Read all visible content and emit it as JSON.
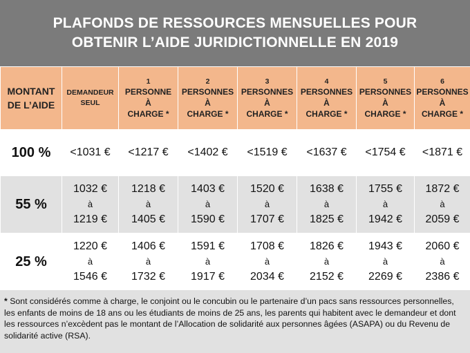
{
  "title": {
    "line1": "PLAFONDS DE RESSOURCES MENSUELLES POUR",
    "line2": "OBTENIR  L’AIDE JURIDICTIONNELLE EN 2019"
  },
  "columns": {
    "montant": [
      "MONTANT",
      "DE L’AIDE"
    ],
    "demandeur": [
      "DEMANDEUR",
      "SEUL"
    ],
    "charges": [
      {
        "num": "1",
        "lines": [
          "PERSONNE",
          "À",
          "CHARGE *"
        ]
      },
      {
        "num": "2",
        "lines": [
          "PERSONNES",
          "À",
          "CHARGE *"
        ]
      },
      {
        "num": "3",
        "lines": [
          "PERSONNES",
          "À",
          "CHARGE *"
        ]
      },
      {
        "num": "4",
        "lines": [
          "PERSONNES",
          "À",
          "CHARGE *"
        ]
      },
      {
        "num": "5",
        "lines": [
          "PERSONNES",
          "À",
          "CHARGE *"
        ]
      },
      {
        "num": "6",
        "lines": [
          "PERSONNES",
          "À",
          "CHARGE *"
        ]
      }
    ]
  },
  "rows": [
    {
      "level": "100 %",
      "cells": [
        [
          "<1031 €"
        ],
        [
          "<1217 €"
        ],
        [
          "<1402 €"
        ],
        [
          "<1519 €"
        ],
        [
          "<1637 €"
        ],
        [
          "<1754 €"
        ],
        [
          "<1871 €"
        ]
      ]
    },
    {
      "level": "55 %",
      "cells": [
        [
          "1032 €",
          "à",
          "1219 €"
        ],
        [
          "1218 €",
          "à",
          "1405 €"
        ],
        [
          "1403 €",
          "à",
          "1590 €"
        ],
        [
          "1520 €",
          "à",
          "1707 €"
        ],
        [
          "1638 €",
          "à",
          "1825 €"
        ],
        [
          "1755 €",
          "à",
          "1942 €"
        ],
        [
          "1872 €",
          "à",
          "2059 €"
        ]
      ]
    },
    {
      "level": "25 %",
      "cells": [
        [
          "1220 €",
          "à",
          "1546 €"
        ],
        [
          "1406 €",
          "à",
          "1732 €"
        ],
        [
          "1591 €",
          "à",
          "1917 €"
        ],
        [
          "1708 €",
          "à",
          "2034 €"
        ],
        [
          "1826 €",
          "à",
          "2152 €"
        ],
        [
          "1943 €",
          "à",
          "2269 €"
        ],
        [
          "2060 €",
          "à",
          "2386 €"
        ]
      ]
    }
  ],
  "note": {
    "star": "*",
    "text": " Sont considérés comme à charge, le conjoint ou le concubin ou le partenaire d’un pacs  sans ressources personnelles, les enfants de moins de 18 ans ou les étudiants de moins de 25 ans, les parents qui habitent avec le demandeur et dont les ressources n’excèdent pas le montant de l’Allocation de solidarité aux personnes âgées (ASAPA) ou du Revenu de solidarité active (RSA)."
  },
  "colors": {
    "title_bg": "#7b7b7b",
    "header_bg": "#f3b78c",
    "band_bg": "#e1e1e1"
  }
}
